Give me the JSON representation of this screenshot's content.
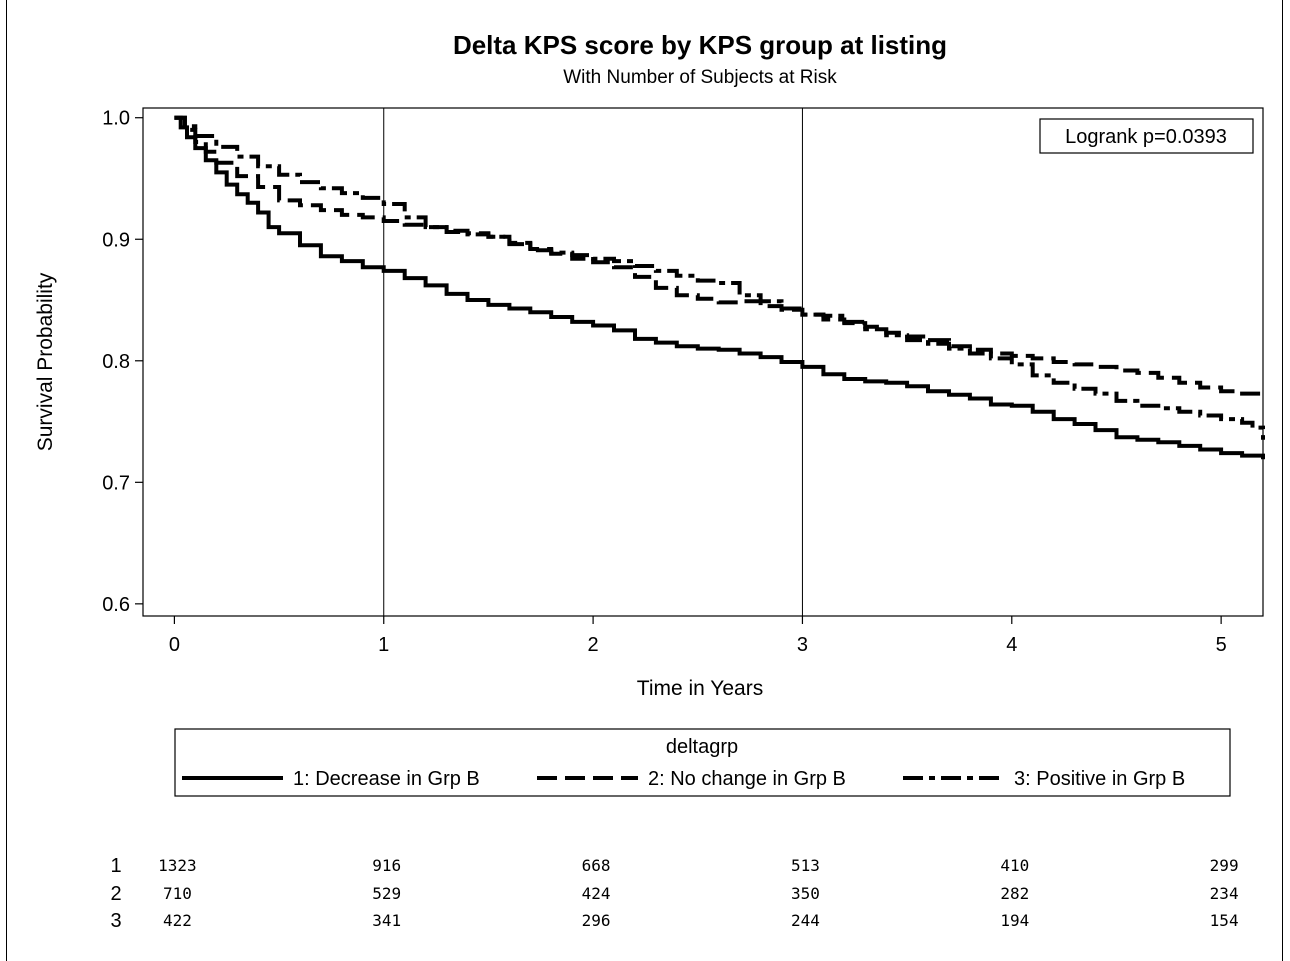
{
  "chart_data": {
    "type": "line",
    "title": "Delta KPS score by KPS group at listing",
    "subtitle": "With Number of Subjects at Risk",
    "xlabel": "Time in Years",
    "ylabel": "Survival Probability",
    "xlim": [
      -0.15,
      5.2
    ],
    "ylim": [
      0.59,
      1.008
    ],
    "x_ticks": [
      0,
      1,
      2,
      3,
      4,
      5
    ],
    "y_ticks": [
      0.6,
      0.7,
      0.8,
      0.9,
      1.0
    ],
    "x_tick_labels": [
      "0",
      "1",
      "2",
      "3",
      "4",
      "5"
    ],
    "y_tick_labels": [
      "0.6",
      "0.7",
      "0.8",
      "0.9",
      "1.0"
    ],
    "reference_lines_x": [
      1,
      3
    ],
    "annotation": "Logrank p=0.0393",
    "grid": false,
    "legend": {
      "title": "deltagrp",
      "placement": "bottom",
      "entries": [
        "1: Decrease in Grp B",
        "2: No change in Grp B",
        "3: Positive in Grp B"
      ]
    },
    "series": [
      {
        "name": "1: Decrease in Grp B",
        "style": "solid",
        "x": [
          0,
          0.03,
          0.06,
          0.1,
          0.15,
          0.2,
          0.25,
          0.3,
          0.35,
          0.4,
          0.45,
          0.5,
          0.6,
          0.7,
          0.8,
          0.9,
          1.0,
          1.1,
          1.2,
          1.3,
          1.4,
          1.5,
          1.6,
          1.7,
          1.8,
          1.9,
          2.0,
          2.1,
          2.2,
          2.3,
          2.4,
          2.5,
          2.6,
          2.7,
          2.8,
          2.9,
          3.0,
          3.1,
          3.2,
          3.3,
          3.4,
          3.5,
          3.6,
          3.7,
          3.8,
          3.9,
          4.0,
          4.1,
          4.2,
          4.3,
          4.4,
          4.5,
          4.6,
          4.7,
          4.8,
          4.9,
          5.0,
          5.1,
          5.2
        ],
        "y": [
          1.0,
          0.992,
          0.984,
          0.975,
          0.965,
          0.955,
          0.945,
          0.937,
          0.93,
          0.922,
          0.91,
          0.905,
          0.895,
          0.886,
          0.882,
          0.877,
          0.874,
          0.868,
          0.862,
          0.855,
          0.85,
          0.846,
          0.843,
          0.84,
          0.836,
          0.832,
          0.829,
          0.825,
          0.818,
          0.815,
          0.812,
          0.81,
          0.809,
          0.806,
          0.803,
          0.799,
          0.795,
          0.789,
          0.785,
          0.783,
          0.782,
          0.779,
          0.775,
          0.772,
          0.769,
          0.764,
          0.763,
          0.758,
          0.752,
          0.748,
          0.743,
          0.737,
          0.735,
          0.733,
          0.73,
          0.727,
          0.724,
          0.722,
          0.719
        ]
      },
      {
        "name": "2: No change in Grp B",
        "style": "dash",
        "x": [
          0,
          0.05,
          0.1,
          0.15,
          0.2,
          0.3,
          0.4,
          0.5,
          0.6,
          0.7,
          0.8,
          0.9,
          1.0,
          1.1,
          1.2,
          1.3,
          1.4,
          1.5,
          1.6,
          1.7,
          1.8,
          1.9,
          2.0,
          2.1,
          2.2,
          2.3,
          2.4,
          2.5,
          2.6,
          2.7,
          2.8,
          2.9,
          3.0,
          3.1,
          3.2,
          3.3,
          3.4,
          3.5,
          3.6,
          3.7,
          3.8,
          3.9,
          4.0,
          4.1,
          4.2,
          4.3,
          4.4,
          4.5,
          4.6,
          4.7,
          4.8,
          4.9,
          5.0,
          5.1,
          5.2
        ],
        "y": [
          1.0,
          0.99,
          0.98,
          0.972,
          0.963,
          0.952,
          0.943,
          0.932,
          0.928,
          0.924,
          0.92,
          0.918,
          0.915,
          0.912,
          0.91,
          0.907,
          0.905,
          0.902,
          0.897,
          0.892,
          0.888,
          0.884,
          0.881,
          0.877,
          0.869,
          0.86,
          0.854,
          0.851,
          0.848,
          0.849,
          0.845,
          0.842,
          0.838,
          0.834,
          0.831,
          0.828,
          0.823,
          0.82,
          0.817,
          0.812,
          0.809,
          0.806,
          0.804,
          0.802,
          0.799,
          0.797,
          0.795,
          0.792,
          0.79,
          0.786,
          0.782,
          0.778,
          0.775,
          0.773,
          0.773
        ]
      },
      {
        "name": "3: Positive in Grp B",
        "style": "dashdot",
        "x": [
          0,
          0.05,
          0.1,
          0.2,
          0.3,
          0.4,
          0.5,
          0.6,
          0.7,
          0.8,
          0.9,
          1.0,
          1.1,
          1.2,
          1.3,
          1.4,
          1.5,
          1.6,
          1.7,
          1.8,
          1.9,
          2.0,
          2.1,
          2.2,
          2.3,
          2.4,
          2.5,
          2.6,
          2.7,
          2.8,
          2.9,
          3.0,
          3.1,
          3.2,
          3.3,
          3.4,
          3.5,
          3.6,
          3.7,
          3.8,
          3.9,
          4.0,
          4.1,
          4.2,
          4.3,
          4.4,
          4.5,
          4.6,
          4.7,
          4.8,
          4.9,
          5.0,
          5.1,
          5.15,
          5.2
        ],
        "y": [
          1.0,
          0.993,
          0.985,
          0.976,
          0.968,
          0.96,
          0.953,
          0.947,
          0.942,
          0.938,
          0.934,
          0.929,
          0.918,
          0.91,
          0.906,
          0.904,
          0.902,
          0.896,
          0.891,
          0.889,
          0.887,
          0.884,
          0.882,
          0.878,
          0.874,
          0.87,
          0.866,
          0.864,
          0.854,
          0.849,
          0.843,
          0.838,
          0.837,
          0.832,
          0.826,
          0.821,
          0.817,
          0.814,
          0.81,
          0.806,
          0.802,
          0.797,
          0.788,
          0.782,
          0.777,
          0.773,
          0.767,
          0.763,
          0.761,
          0.758,
          0.755,
          0.752,
          0.749,
          0.745,
          0.735
        ]
      }
    ],
    "at_risk": {
      "labels": [
        "1",
        "2",
        "3"
      ],
      "times": [
        0,
        1,
        2,
        3,
        4,
        5
      ],
      "rows": [
        [
          1323,
          916,
          668,
          513,
          410,
          299
        ],
        [
          710,
          529,
          424,
          350,
          282,
          234
        ],
        [
          422,
          341,
          296,
          244,
          194,
          154
        ]
      ]
    }
  }
}
